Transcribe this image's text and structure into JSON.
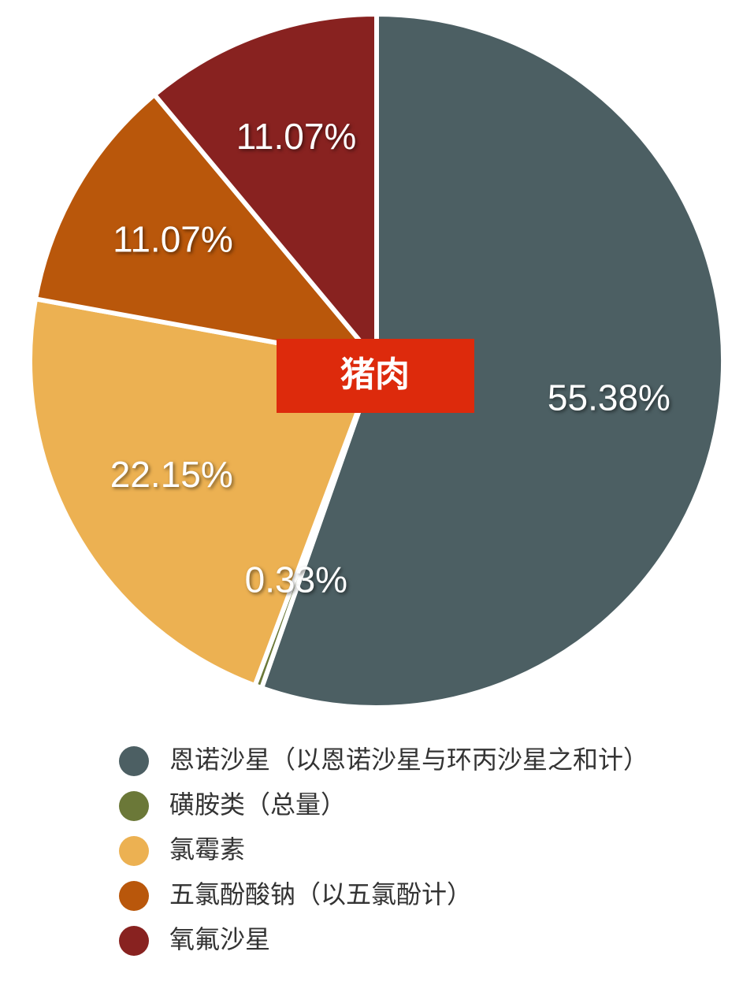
{
  "chart_data": {
    "type": "pie",
    "title": "猪肉",
    "categories": [
      "恩诺沙星（以恩诺沙星与环丙沙星之和计）",
      "磺胺类（总量）",
      "氯霉素",
      "五氯酚酸钠（以五氯酚计）",
      "氧氟沙星"
    ],
    "values": [
      55.38,
      0.33,
      22.15,
      11.07,
      11.07
    ],
    "value_labels": [
      "55.38%",
      "0.33%",
      "22.15%",
      "11.07%",
      "11.07%"
    ],
    "colors": [
      "#4c5f63",
      "#6b7838",
      "#ecb152",
      "#b9570b",
      "#882220"
    ]
  }
}
